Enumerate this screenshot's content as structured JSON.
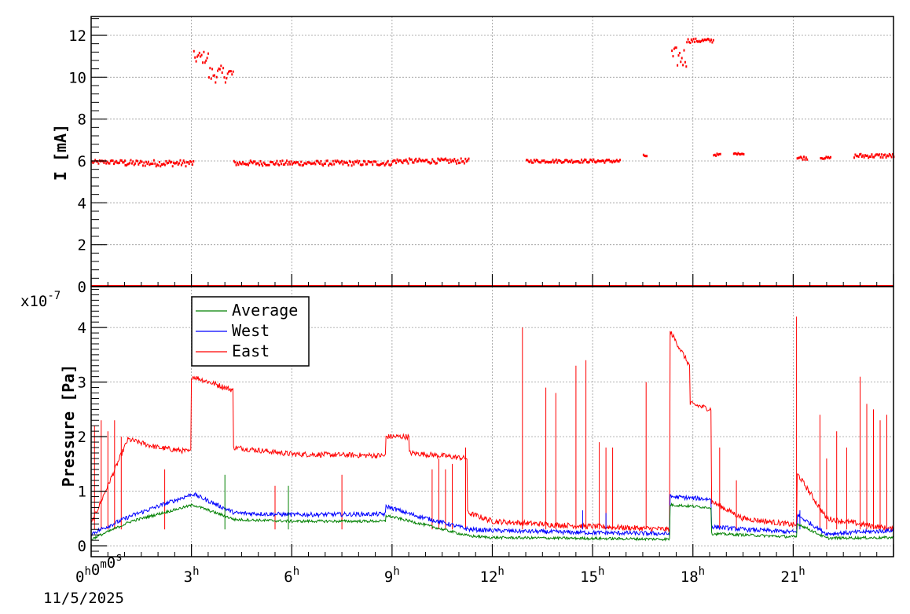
{
  "chart_data": [
    {
      "type": "scatter",
      "ylabel": "I [mA]",
      "ylim": [
        0,
        12.9
      ],
      "yticks": [
        {
          "v": 0,
          "label": "0"
        },
        {
          "v": 2,
          "label": "2"
        },
        {
          "v": 4,
          "label": "4"
        },
        {
          "v": 6,
          "label": "6"
        },
        {
          "v": 8,
          "label": "8"
        },
        {
          "v": 10,
          "label": "10"
        },
        {
          "v": 12,
          "label": "12"
        }
      ],
      "grid": true,
      "series": [
        {
          "color": "#ff0000",
          "segments": [
            {
              "x": [
                0.0,
                1.0
              ],
              "y": 6.0,
              "jitter": 0.1
            },
            {
              "x": [
                1.0,
                3.05
              ],
              "y": 5.95,
              "jitter": 0.15
            },
            {
              "x": [
                3.05,
                3.5
              ],
              "y": 11.0,
              "jitter": 0.3
            },
            {
              "x": [
                3.5,
                4.25
              ],
              "y": 10.2,
              "jitter": 0.4
            },
            {
              "x": [
                4.25,
                9.0
              ],
              "y": 5.95,
              "jitter": 0.12
            },
            {
              "x": [
                9.0,
                11.3
              ],
              "y": 6.05,
              "jitter": 0.12
            },
            {
              "x": [
                13.0,
                15.8
              ],
              "y": 6.05,
              "jitter": 0.08
            },
            {
              "x": [
                16.5,
                16.6
              ],
              "y": 6.3,
              "jitter": 0.05
            },
            {
              "x": [
                17.35,
                17.8
              ],
              "y": 11.0,
              "jitter": 0.5
            },
            {
              "x": [
                17.8,
                18.6
              ],
              "y": 11.8,
              "jitter": 0.1
            },
            {
              "x": [
                18.6,
                18.8
              ],
              "y": 6.35,
              "jitter": 0.05
            },
            {
              "x": [
                19.2,
                19.5
              ],
              "y": 6.4,
              "jitter": 0.03
            },
            {
              "x": [
                21.1,
                21.4
              ],
              "y": 6.2,
              "jitter": 0.08
            },
            {
              "x": [
                21.8,
                22.1
              ],
              "y": 6.2,
              "jitter": 0.05
            },
            {
              "x": [
                22.8,
                24.0
              ],
              "y": 6.3,
              "jitter": 0.1
            }
          ],
          "zero_baseline": true
        }
      ]
    },
    {
      "type": "line",
      "ylabel": "Pressure [Pa]",
      "yscale_label": "x10",
      "yscale_exp": "-7",
      "ylim": [
        -0.2,
        4.75
      ],
      "yticks": [
        {
          "v": 0,
          "label": "0"
        },
        {
          "v": 1,
          "label": "1"
        },
        {
          "v": 2,
          "label": "2"
        },
        {
          "v": 3,
          "label": "3"
        },
        {
          "v": 4,
          "label": "4"
        }
      ],
      "grid": true,
      "legend": [
        {
          "name": "Average",
          "color": "#008000"
        },
        {
          "name": "West",
          "color": "#0000ff"
        },
        {
          "name": "East",
          "color": "#ff0000"
        }
      ],
      "series": [
        {
          "name": "East",
          "color": "#ff0000",
          "noise": 0.05,
          "levels": [
            [
              0,
              0.4
            ],
            [
              1.1,
              1.95
            ],
            [
              2,
              1.8
            ],
            [
              3,
              1.72
            ],
            [
              3.05,
              3.1
            ],
            [
              4.25,
              2.85
            ],
            [
              4.3,
              1.8
            ],
            [
              6,
              1.68
            ],
            [
              8.8,
              1.65
            ],
            [
              8.85,
              2.0
            ],
            [
              9.5,
              2.0
            ],
            [
              9.55,
              1.7
            ],
            [
              10.5,
              1.65
            ],
            [
              11.25,
              1.6
            ],
            [
              11.3,
              0.6
            ],
            [
              12,
              0.45
            ],
            [
              14,
              0.38
            ],
            [
              17.3,
              0.3
            ],
            [
              17.35,
              3.9
            ],
            [
              17.9,
              3.3
            ],
            [
              17.95,
              2.6
            ],
            [
              18.55,
              2.5
            ],
            [
              18.6,
              0.8
            ],
            [
              19.5,
              0.5
            ],
            [
              21.1,
              0.38
            ],
            [
              21.15,
              1.3
            ],
            [
              22,
              0.5
            ],
            [
              24,
              0.3
            ]
          ],
          "spikes": [
            [
              0.1,
              2.2
            ],
            [
              0.3,
              2.3
            ],
            [
              0.5,
              2.1
            ],
            [
              0.7,
              2.3
            ],
            [
              0.9,
              2.0
            ],
            [
              2.2,
              1.4
            ],
            [
              5.5,
              1.1
            ],
            [
              7.5,
              1.3
            ],
            [
              10.2,
              1.4
            ],
            [
              10.4,
              1.6
            ],
            [
              10.6,
              1.4
            ],
            [
              10.8,
              1.5
            ],
            [
              11.2,
              1.8
            ],
            [
              12.9,
              4.0
            ],
            [
              13.6,
              2.9
            ],
            [
              13.9,
              2.8
            ],
            [
              14.5,
              3.3
            ],
            [
              14.8,
              3.4
            ],
            [
              15.2,
              1.9
            ],
            [
              15.4,
              1.8
            ],
            [
              15.6,
              1.8
            ],
            [
              16.6,
              3.0
            ],
            [
              18.8,
              1.8
            ],
            [
              19.3,
              1.2
            ],
            [
              21.1,
              4.2
            ],
            [
              21.8,
              2.4
            ],
            [
              22.0,
              1.6
            ],
            [
              22.3,
              2.1
            ],
            [
              22.6,
              1.8
            ],
            [
              23.0,
              3.1
            ],
            [
              23.2,
              2.6
            ],
            [
              23.4,
              2.5
            ],
            [
              23.6,
              2.3
            ],
            [
              23.8,
              2.4
            ]
          ]
        },
        {
          "name": "West",
          "color": "#0000ff",
          "noise": 0.04,
          "levels": [
            [
              0,
              0.22
            ],
            [
              1.2,
              0.55
            ],
            [
              3.05,
              0.95
            ],
            [
              4.3,
              0.6
            ],
            [
              6,
              0.57
            ],
            [
              8.8,
              0.58
            ],
            [
              8.85,
              0.72
            ],
            [
              9.55,
              0.58
            ],
            [
              11.3,
              0.3
            ],
            [
              12,
              0.28
            ],
            [
              14,
              0.25
            ],
            [
              17.3,
              0.22
            ],
            [
              17.35,
              0.9
            ],
            [
              18.55,
              0.85
            ],
            [
              18.6,
              0.35
            ],
            [
              19.5,
              0.3
            ],
            [
              21.1,
              0.25
            ],
            [
              21.15,
              0.55
            ],
            [
              22,
              0.22
            ],
            [
              24,
              0.28
            ]
          ],
          "spikes": [
            [
              14.7,
              0.65
            ],
            [
              15.4,
              0.6
            ],
            [
              21.2,
              0.65
            ]
          ]
        },
        {
          "name": "Average",
          "color": "#008000",
          "noise": 0.025,
          "levels": [
            [
              0,
              0.12
            ],
            [
              1.2,
              0.45
            ],
            [
              3.05,
              0.75
            ],
            [
              4.3,
              0.48
            ],
            [
              6,
              0.45
            ],
            [
              8.8,
              0.45
            ],
            [
              8.85,
              0.55
            ],
            [
              9.55,
              0.45
            ],
            [
              11.3,
              0.18
            ],
            [
              12,
              0.15
            ],
            [
              14,
              0.14
            ],
            [
              17.3,
              0.12
            ],
            [
              17.35,
              0.75
            ],
            [
              18.55,
              0.7
            ],
            [
              18.6,
              0.22
            ],
            [
              19.5,
              0.2
            ],
            [
              21.1,
              0.16
            ],
            [
              21.15,
              0.4
            ],
            [
              22,
              0.14
            ],
            [
              24,
              0.15
            ]
          ],
          "spikes": [
            [
              4.0,
              1.3
            ],
            [
              5.9,
              1.1
            ]
          ]
        }
      ]
    }
  ],
  "xaxis": {
    "xlim": [
      0,
      24
    ],
    "ticks": [
      {
        "v": 0,
        "main": "0",
        "sup": "h",
        "parts": [
          [
            "0",
            "h"
          ],
          [
            "0",
            "m"
          ],
          [
            "0",
            "s"
          ]
        ]
      },
      {
        "v": 3,
        "main": "3",
        "sup": "h"
      },
      {
        "v": 6,
        "main": "6",
        "sup": "h"
      },
      {
        "v": 9,
        "main": "9",
        "sup": "h"
      },
      {
        "v": 12,
        "main": "12",
        "sup": "h"
      },
      {
        "v": 15,
        "main": "15",
        "sup": "h"
      },
      {
        "v": 18,
        "main": "18",
        "sup": "h"
      },
      {
        "v": 21,
        "main": "21",
        "sup": "h"
      }
    ],
    "date_label": "11/5/2025"
  }
}
